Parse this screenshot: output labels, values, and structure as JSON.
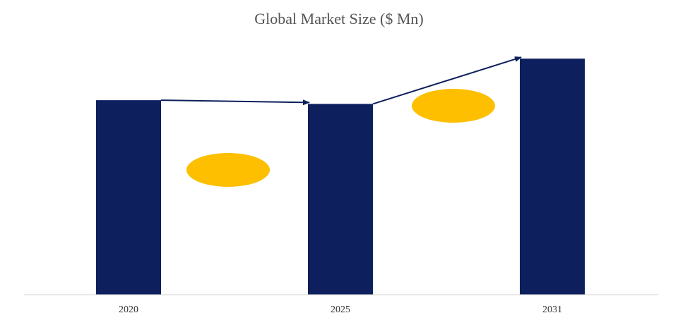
{
  "chart_data": {
    "type": "bar",
    "title": "Global Market Size ($ Mn)",
    "categories": [
      "2020",
      "2025",
      "2031"
    ],
    "values": [
      262,
      257,
      318
    ],
    "ylim": [
      0,
      340
    ],
    "grid": false,
    "colors": {
      "bar": "#0d1f5c",
      "arrow": "#0d1f5c",
      "badge": "#fdbf00",
      "axis": "#d0d0d0"
    }
  }
}
